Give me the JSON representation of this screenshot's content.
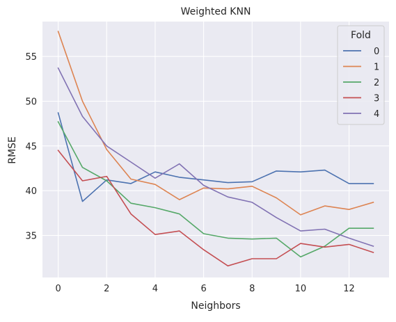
{
  "chart_data": {
    "type": "line",
    "title": "Weighted KNN",
    "xlabel": "Neighbors",
    "ylabel": "RMSE",
    "x": [
      0,
      1,
      2,
      3,
      4,
      5,
      6,
      7,
      8,
      9,
      10,
      11,
      12,
      13
    ],
    "xlim": [
      -0.65,
      13.65
    ],
    "ylim": [
      30.3,
      58.9
    ],
    "xticks": [
      0,
      2,
      4,
      6,
      8,
      10,
      12
    ],
    "yticks": [
      35,
      40,
      45,
      50,
      55
    ],
    "grid": true,
    "legend": {
      "title": "Fold",
      "placement": "upper-right"
    },
    "series": [
      {
        "name": "0",
        "color": "#4c72b0",
        "values": [
          48.7,
          38.8,
          41.2,
          40.8,
          42.1,
          41.5,
          41.2,
          40.9,
          41.0,
          42.2,
          42.1,
          42.3,
          40.8,
          40.8
        ]
      },
      {
        "name": "1",
        "color": "#dd8452",
        "values": [
          57.8,
          50.0,
          44.6,
          41.3,
          40.7,
          39.0,
          40.3,
          40.2,
          40.5,
          39.2,
          37.3,
          38.3,
          37.9,
          38.7
        ]
      },
      {
        "name": "2",
        "color": "#55a868",
        "values": [
          47.7,
          42.6,
          41.1,
          38.6,
          38.1,
          37.4,
          35.2,
          34.7,
          34.6,
          34.7,
          32.6,
          33.8,
          35.8,
          35.8
        ]
      },
      {
        "name": "3",
        "color": "#c44e52",
        "values": [
          44.5,
          41.1,
          41.6,
          37.4,
          35.1,
          35.5,
          33.4,
          31.6,
          32.4,
          32.4,
          34.1,
          33.7,
          34.0,
          33.1
        ]
      },
      {
        "name": "4",
        "color": "#8172b3",
        "values": [
          53.7,
          48.3,
          45.0,
          43.2,
          41.4,
          43.0,
          40.6,
          39.3,
          38.7,
          37.0,
          35.5,
          35.7,
          34.7,
          33.8
        ]
      }
    ]
  }
}
